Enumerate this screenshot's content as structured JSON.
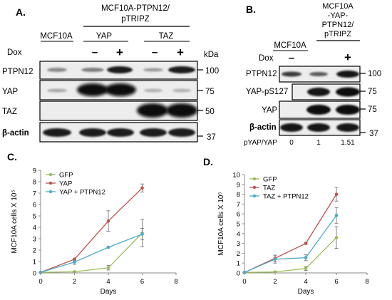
{
  "panelA": {
    "letter": "A.",
    "header_line1": "MCF10A-PTPN12/",
    "header_line2": "pTRIPZ",
    "groups": [
      "MCF10A",
      "YAP",
      "TAZ"
    ],
    "dox_label": "Dox",
    "dox_marks": [
      "–",
      "+",
      "–",
      "+"
    ],
    "kda_label": "kDa",
    "rows": [
      {
        "label": "PTPN12",
        "kda": "100"
      },
      {
        "label": "YAP",
        "kda": "75"
      },
      {
        "label": "TAZ",
        "kda": "50"
      },
      {
        "label": "β-actin",
        "kda": "37"
      }
    ]
  },
  "panelB": {
    "letter": "B.",
    "header_lines": [
      "MCF10A",
      "-YAP-",
      "PTPN12/",
      "pTRIPZ"
    ],
    "group": "MCF10A",
    "dox_label": "Dox",
    "dox_marks": [
      "–",
      "+"
    ],
    "rows": [
      {
        "label": "PTPN12",
        "kda": "100"
      },
      {
        "label": "YAP-pS127",
        "kda": "75"
      },
      {
        "label": "YAP",
        "kda": "75"
      },
      {
        "label": "β-actin",
        "kda": "37"
      }
    ],
    "ratio_label": "pYAP/YAP",
    "ratio_values": [
      "0",
      "1",
      "1.51"
    ]
  },
  "panelC_letter": "C.",
  "panelD_letter": "D.",
  "colors": {
    "gfp": "#9bbb59",
    "yap": "#c0504d",
    "combo": "#4bacc6"
  },
  "chart_data": [
    {
      "type": "line",
      "panel": "C.",
      "xlabel": "Days",
      "ylabel": "MCF10A cells X 10⁵",
      "xlim": [
        0,
        8
      ],
      "ylim": [
        0,
        9
      ],
      "xticks": [
        0,
        2,
        4,
        6,
        8
      ],
      "yticks": [
        0,
        1,
        2,
        3,
        4,
        5,
        6,
        7,
        8,
        9
      ],
      "series": [
        {
          "name": "GFP",
          "x": [
            0,
            2,
            4,
            6
          ],
          "y": [
            0.05,
            0.1,
            0.45,
            3.5
          ],
          "err": [
            0,
            0.05,
            0.2,
            1.2
          ]
        },
        {
          "name": "YAP",
          "x": [
            0,
            2,
            4,
            6
          ],
          "y": [
            0.05,
            1.2,
            4.55,
            7.45
          ],
          "err": [
            0,
            0.1,
            0.9,
            0.35
          ]
        },
        {
          "name": "YAP + PTPN12",
          "x": [
            0,
            2,
            4,
            6
          ],
          "y": [
            0.05,
            0.95,
            2.25,
            3.4
          ],
          "err": [
            0,
            0.2,
            0.05,
            0.5
          ]
        }
      ]
    },
    {
      "type": "line",
      "panel": "D.",
      "xlabel": "Days",
      "ylabel": "MCF10A cells X 10⁵",
      "xlim": [
        0,
        8
      ],
      "ylim": [
        0,
        10
      ],
      "xticks": [
        0,
        2,
        4,
        6,
        8
      ],
      "yticks": [
        0,
        1,
        2,
        3,
        4,
        5,
        6,
        7,
        8,
        9,
        10
      ],
      "series": [
        {
          "name": "GFP",
          "x": [
            0,
            2,
            4,
            6
          ],
          "y": [
            0.05,
            0.1,
            0.45,
            3.6
          ],
          "err": [
            0,
            0.05,
            0.2,
            1.1
          ]
        },
        {
          "name": "TAZ",
          "x": [
            0,
            2,
            4,
            6
          ],
          "y": [
            0.05,
            1.5,
            3.0,
            8.0
          ],
          "err": [
            0,
            0.3,
            0.1,
            0.7
          ]
        },
        {
          "name": "TAZ + PTPN12",
          "x": [
            0,
            2,
            4,
            6
          ],
          "y": [
            0.05,
            1.4,
            1.55,
            5.85
          ],
          "err": [
            0,
            0.4,
            0.3,
            0.8
          ]
        }
      ]
    }
  ]
}
